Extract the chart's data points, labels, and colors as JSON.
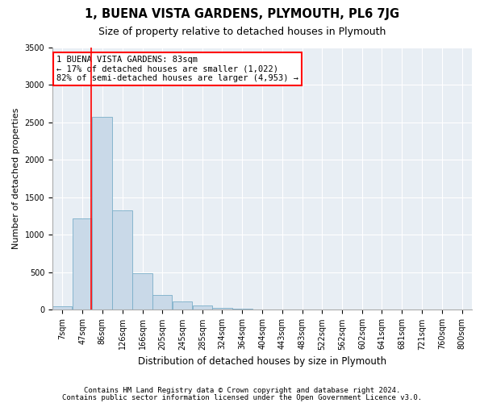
{
  "title": "1, BUENA VISTA GARDENS, PLYMOUTH, PL6 7JG",
  "subtitle": "Size of property relative to detached houses in Plymouth",
  "xlabel": "Distribution of detached houses by size in Plymouth",
  "ylabel": "Number of detached properties",
  "bar_color": "#c9d9e8",
  "bar_edge_color": "#7aaec8",
  "red_line_x": 83,
  "categories": [
    "7sqm",
    "47sqm",
    "86sqm",
    "126sqm",
    "166sqm",
    "205sqm",
    "245sqm",
    "285sqm",
    "324sqm",
    "364sqm",
    "404sqm",
    "443sqm",
    "483sqm",
    "522sqm",
    "562sqm",
    "602sqm",
    "641sqm",
    "681sqm",
    "721sqm",
    "760sqm",
    "800sqm"
  ],
  "bin_starts": [
    7,
    47,
    86,
    126,
    166,
    205,
    245,
    285,
    324,
    364,
    404,
    443,
    483,
    522,
    562,
    602,
    641,
    681,
    721,
    760,
    800
  ],
  "bin_width": 39,
  "values": [
    50,
    1220,
    2580,
    1330,
    490,
    200,
    110,
    55,
    30,
    12,
    5,
    3,
    2,
    1,
    1,
    0,
    0,
    0,
    0,
    0,
    0
  ],
  "ylim": [
    0,
    3500
  ],
  "yticks": [
    0,
    500,
    1000,
    1500,
    2000,
    2500,
    3000,
    3500
  ],
  "annotation_line1": "1 BUENA VISTA GARDENS: 83sqm",
  "annotation_line2": "← 17% of detached houses are smaller (1,022)",
  "annotation_line3": "82% of semi-detached houses are larger (4,953) →",
  "footer1": "Contains HM Land Registry data © Crown copyright and database right 2024.",
  "footer2": "Contains public sector information licensed under the Open Government Licence v3.0.",
  "bg_color": "#ffffff",
  "plot_bg_color": "#e8eef4",
  "grid_color": "#ffffff",
  "title_fontsize": 10.5,
  "subtitle_fontsize": 9,
  "ylabel_fontsize": 8,
  "xlabel_fontsize": 8.5,
  "tick_fontsize": 7,
  "annotation_fontsize": 7.5,
  "footer_fontsize": 6.5
}
